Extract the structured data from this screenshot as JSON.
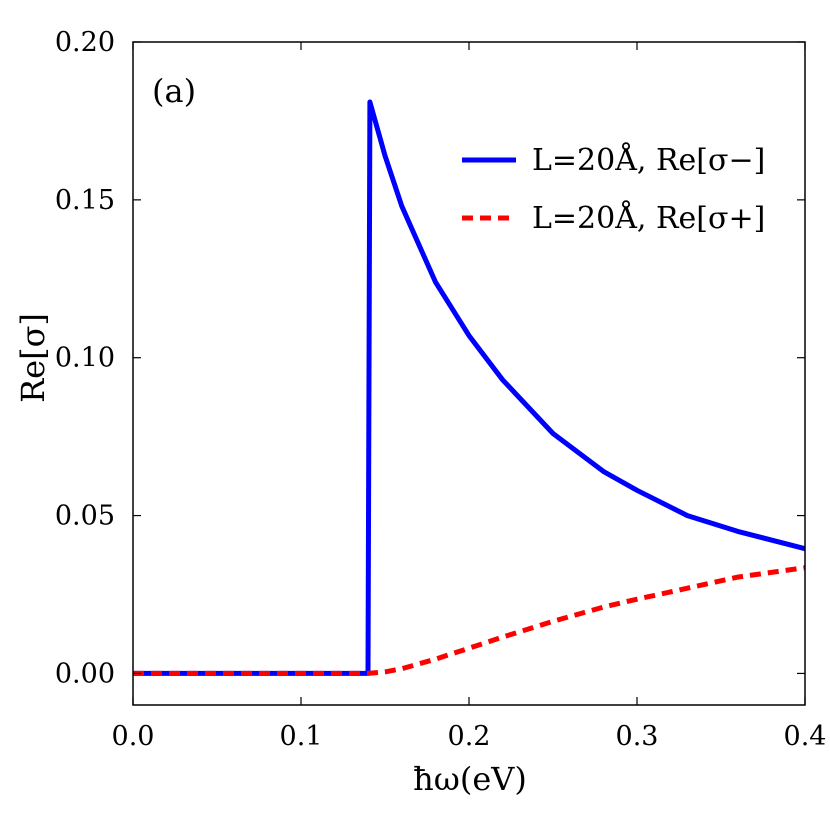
{
  "chart_data": {
    "type": "line",
    "panel_label": "(a)",
    "xlabel": "ħω(eV)",
    "ylabel": "Re[σ]",
    "xlim": [
      0.0,
      0.4
    ],
    "ylim": [
      -0.01,
      0.2
    ],
    "xticks": [
      0.0,
      0.1,
      0.2,
      0.3,
      0.4
    ],
    "xtick_labels": [
      "0.0",
      "0.1",
      "0.2",
      "0.3",
      "0.4"
    ],
    "yticks": [
      0.0,
      0.05,
      0.1,
      0.15,
      0.2
    ],
    "ytick_labels": [
      "0.00",
      "0.05",
      "0.10",
      "0.15",
      "0.20"
    ],
    "grid": false,
    "legend_position": "top-right",
    "series": [
      {
        "name": "L=20Å, Re[σ−]",
        "legend_label": "L=20Å, Re[σ−]",
        "color": "#0000ff",
        "style": "solid",
        "x": [
          0.0,
          0.14,
          0.1399,
          0.141,
          0.15,
          0.16,
          0.18,
          0.2,
          0.22,
          0.25,
          0.28,
          0.3,
          0.33,
          0.36,
          0.4
        ],
        "y": [
          0.0,
          0.0,
          0.0,
          0.181,
          0.164,
          0.148,
          0.124,
          0.107,
          0.093,
          0.076,
          0.064,
          0.058,
          0.05,
          0.045,
          0.0395
        ]
      },
      {
        "name": "L=20Å, Re[σ+]",
        "legend_label": "L=20Å, Re[σ+]",
        "color": "#ff0000",
        "style": "dashed",
        "x": [
          0.0,
          0.14,
          0.15,
          0.16,
          0.18,
          0.2,
          0.22,
          0.25,
          0.28,
          0.3,
          0.33,
          0.36,
          0.4
        ],
        "y": [
          0.0,
          0.0,
          0.0005,
          0.0015,
          0.0045,
          0.008,
          0.0115,
          0.0165,
          0.021,
          0.0235,
          0.027,
          0.0305,
          0.0335
        ]
      }
    ]
  }
}
